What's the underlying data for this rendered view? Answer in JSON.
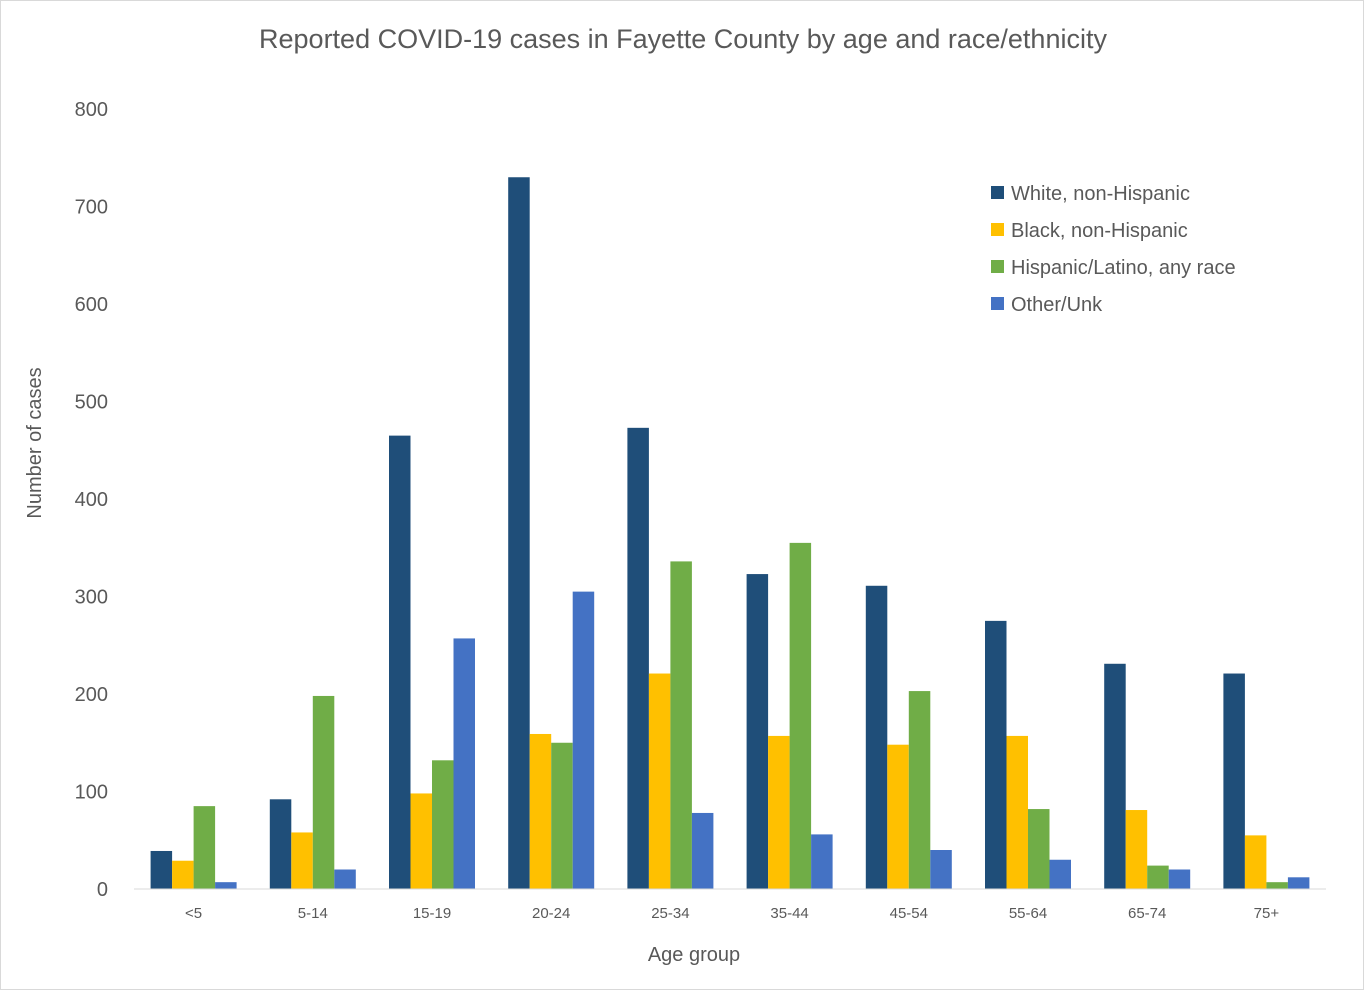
{
  "chart_data": {
    "type": "bar",
    "title": "Reported COVID-19 cases in Fayette County by age and race/ethnicity",
    "xlabel": "Age group",
    "ylabel": "Number of cases",
    "ylim": [
      0,
      800
    ],
    "yticks": [
      "0",
      "100",
      "200",
      "300",
      "400",
      "500",
      "600",
      "700",
      "800"
    ],
    "grid": false,
    "legend_position": "top-right",
    "categories": [
      "<5",
      "5-14",
      "15-19",
      "20-24",
      "25-34",
      "35-44",
      "45-54",
      "55-64",
      "65-74",
      "75+"
    ],
    "series": [
      {
        "name": "White, non-Hispanic",
        "color": "#1f4e79",
        "values": [
          39,
          92,
          465,
          730,
          473,
          323,
          311,
          275,
          231,
          221
        ]
      },
      {
        "name": "Black, non-Hispanic",
        "color": "#ffc000",
        "values": [
          29,
          58,
          98,
          159,
          221,
          157,
          148,
          157,
          81,
          55
        ]
      },
      {
        "name": "Hispanic/Latino, any race",
        "color": "#70ad47",
        "values": [
          85,
          198,
          132,
          150,
          336,
          355,
          203,
          82,
          24,
          7
        ]
      },
      {
        "name": "Other/Unk",
        "color": "#4472c4",
        "values": [
          7,
          20,
          257,
          305,
          78,
          56,
          40,
          30,
          20,
          12
        ]
      }
    ]
  }
}
